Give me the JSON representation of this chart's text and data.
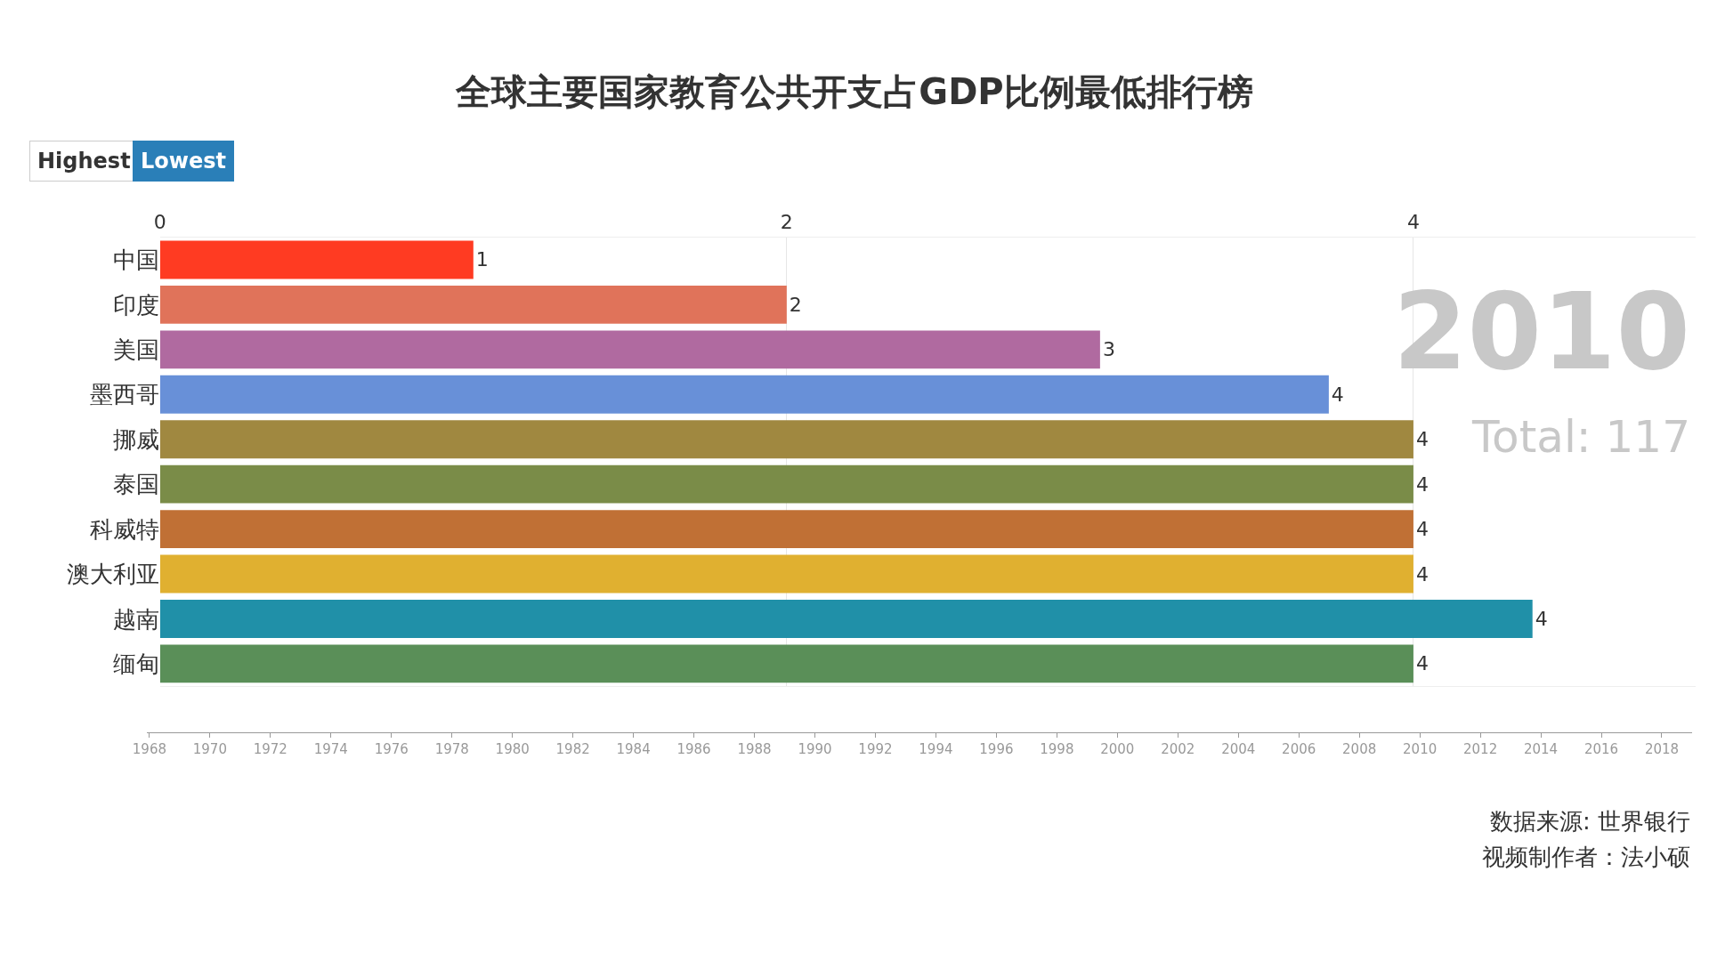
{
  "chart_data": {
    "type": "bar",
    "orientation": "horizontal",
    "title": "全球主要国家教育公共开支占GDP比例最低排行榜",
    "categories": [
      "中国",
      "印度",
      "美国",
      "墨西哥",
      "挪威",
      "泰国",
      "科威特",
      "澳大利亚",
      "越南",
      "缅甸"
    ],
    "values": [
      1.0,
      2.0,
      3.0,
      3.73,
      4.0,
      4.0,
      4.0,
      4.0,
      4.38,
      4.0
    ],
    "value_labels": [
      "1",
      "2",
      "3",
      "4",
      "4",
      "4",
      "4",
      "4",
      "4",
      "4"
    ],
    "colors": [
      "#ff3b22",
      "#e0735a",
      "#b06aa0",
      "#6890d8",
      "#a08840",
      "#7a8c48",
      "#c07035",
      "#e0b030",
      "#2090a8",
      "#5a8f58"
    ],
    "xlim": [
      0,
      4.9
    ],
    "xticks": [
      0,
      2,
      4
    ],
    "grid": "x",
    "x2lim": [
      1967.9,
      2019
    ],
    "x2ticks": [
      1968,
      1970,
      1972,
      1974,
      1976,
      1978,
      1980,
      1982,
      1984,
      1986,
      1988,
      1990,
      1992,
      1994,
      1996,
      1998,
      2000,
      2002,
      2004,
      2006,
      2008,
      2010,
      2012,
      2014,
      2016,
      2018
    ],
    "annotations": [
      "Highest",
      "Lowest",
      "2010",
      "Total: 117",
      "数据来源: 世界银行",
      "视频制作者：法小硕"
    ]
  }
}
